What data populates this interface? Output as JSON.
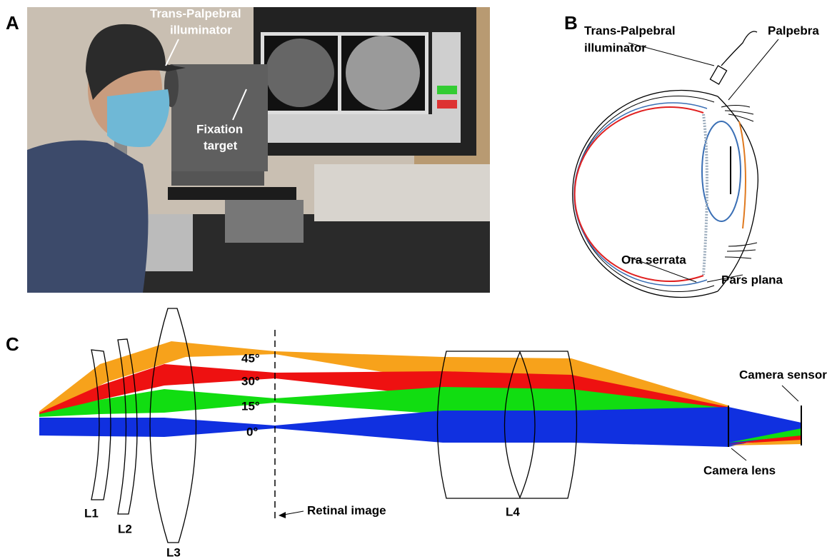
{
  "panels": {
    "a": {
      "label": "A",
      "annotations": [
        {
          "lines": [
            "Trans-Palpebral",
            "illuminator"
          ]
        },
        {
          "lines": [
            "Fixation",
            "target"
          ]
        }
      ]
    },
    "b": {
      "label": "B",
      "annotations": [
        {
          "lines": [
            "Trans-Palpebral",
            "illuminator"
          ]
        },
        {
          "lines": [
            "Palpebra"
          ]
        },
        {
          "lines": [
            "Ora serrata"
          ]
        },
        {
          "lines": [
            "Pars plana"
          ]
        }
      ]
    },
    "c": {
      "label": "C",
      "angles": [
        "45°",
        "30°",
        "15°",
        "0°"
      ],
      "lenses": [
        "L1",
        "L2",
        "L3",
        "L4"
      ],
      "annotations": [
        "Retinal image",
        "Camera sensor",
        "Camera lens"
      ]
    }
  }
}
